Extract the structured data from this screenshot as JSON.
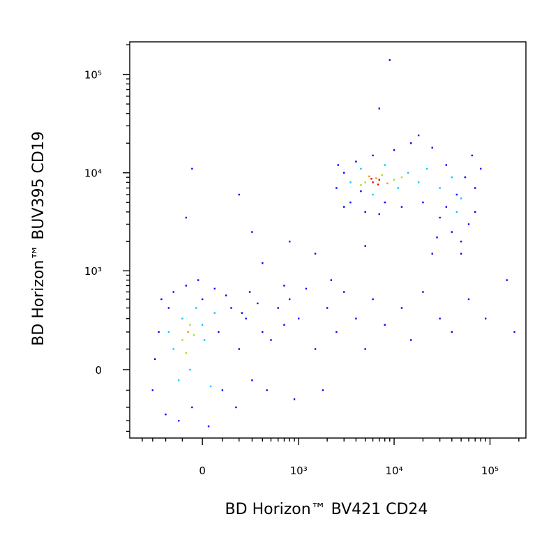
{
  "chart_data": {
    "type": "scatter",
    "scale": "biexponential",
    "xlabel": "BD Horizon™ BV421 CD24",
    "ylabel": "BD Horizon™ BUV395 CD19",
    "xlim": [
      -555,
      237000
    ],
    "ylim": [
      -475,
      214000
    ],
    "xticks": [
      0,
      {
        "value": 1000,
        "label": "10³"
      },
      {
        "value": 10000,
        "label": "10⁴"
      },
      {
        "value": 100000,
        "label": "10⁵"
      }
    ],
    "yticks": [
      0,
      {
        "value": 1000,
        "label": "10³"
      },
      {
        "value": 10000,
        "label": "10⁴"
      },
      {
        "value": 100000,
        "label": "10⁵"
      }
    ],
    "xminorticks": [
      -400,
      -300,
      -200,
      -100,
      100,
      200,
      300,
      400,
      500,
      600,
      700,
      800,
      900,
      2000,
      3000,
      4000,
      5000,
      6000,
      7000,
      8000,
      9000,
      20000,
      30000,
      40000,
      50000,
      60000,
      70000,
      80000,
      90000,
      200000
    ],
    "yminorticks": [
      -400,
      -300,
      -200,
      -100,
      100,
      200,
      300,
      400,
      500,
      600,
      700,
      800,
      900,
      2000,
      3000,
      4000,
      5000,
      6000,
      7000,
      8000,
      9000,
      20000,
      30000,
      40000,
      50000,
      60000,
      70000,
      80000,
      90000,
      200000
    ],
    "series": [
      {
        "color": "#0000ff",
        "x": [
          -300,
          -250,
          -200,
          -180,
          -150,
          -120,
          -80,
          -50,
          0,
          30,
          60,
          100,
          150,
          200,
          250,
          300,
          350,
          400,
          -280,
          -230,
          80,
          120,
          180,
          220,
          280,
          500,
          600,
          700,
          450,
          -20,
          800,
          1000,
          1200,
          1500,
          2000,
          2500,
          3000,
          4000,
          5000,
          6000,
          8000,
          12000,
          15000,
          20000,
          30000,
          1800,
          900,
          700,
          2200,
          25000,
          40000,
          60000,
          90000,
          150000,
          180000,
          800,
          1500,
          400,
          300,
          200,
          -50,
          5000,
          35000,
          9000,
          7000,
          -80,
          2500,
          3000,
          3500,
          4000,
          5000,
          6000,
          8000,
          10000,
          12000,
          15000,
          20000,
          25000,
          30000,
          35000,
          40000,
          45000,
          50000,
          55000,
          60000,
          65000,
          70000,
          80000,
          3000,
          4500,
          7000,
          18000,
          50000,
          28000,
          70000,
          2600
        ],
        "y": [
          -100,
          200,
          -250,
          400,
          600,
          -300,
          700,
          -200,
          500,
          -350,
          650,
          -100,
          400,
          100,
          300,
          -50,
          450,
          200,
          50,
          500,
          200,
          550,
          -200,
          350,
          600,
          150,
          400,
          250,
          -100,
          800,
          500,
          300,
          650,
          100,
          400,
          200,
          600,
          300,
          100,
          500,
          250,
          400,
          150,
          600,
          300,
          -100,
          -150,
          700,
          800,
          1500,
          200,
          500,
          300,
          800,
          200,
          2000,
          1500,
          1200,
          2500,
          6000,
          11000,
          1800,
          4500,
          140000,
          45000,
          3500,
          7000,
          10000,
          5000,
          13000,
          4000,
          15000,
          5000,
          17000,
          4500,
          20000,
          5000,
          18000,
          3500,
          12000,
          2500,
          6000,
          2000,
          9000,
          3000,
          15000,
          7000,
          11000,
          4500,
          6500,
          3800,
          24000,
          1500,
          2200,
          4000,
          12000
        ]
      },
      {
        "color": "#00c8ff",
        "x": [
          -150,
          -100,
          -60,
          -30,
          10,
          40,
          -180,
          0,
          60,
          -120,
          3500,
          4500,
          6000,
          8000,
          11000,
          14000,
          18000,
          22000,
          30000,
          40000,
          45000,
          50000
        ],
        "y": [
          100,
          300,
          0,
          400,
          150,
          -80,
          200,
          250,
          350,
          -50,
          8000,
          11000,
          6000,
          12000,
          7000,
          10000,
          8000,
          11000,
          7000,
          9000,
          4000,
          5500
        ]
      },
      {
        "color": "#a0e020",
        "x": [
          -100,
          -60,
          -80,
          -40,
          5000,
          7500,
          10000,
          12000,
          4500
        ],
        "y": [
          150,
          250,
          80,
          180,
          8000,
          9500,
          8500,
          9000,
          7500
        ]
      },
      {
        "color": "#ff8c00",
        "x": [
          -70,
          6500,
          8500,
          5500
        ],
        "y": [
          200,
          8800,
          7800,
          9200
        ]
      },
      {
        "color": "#e00000",
        "x": [
          6000,
          7000,
          6800,
          5800
        ],
        "y": [
          8000,
          8500,
          7600,
          8700
        ]
      }
    ]
  }
}
